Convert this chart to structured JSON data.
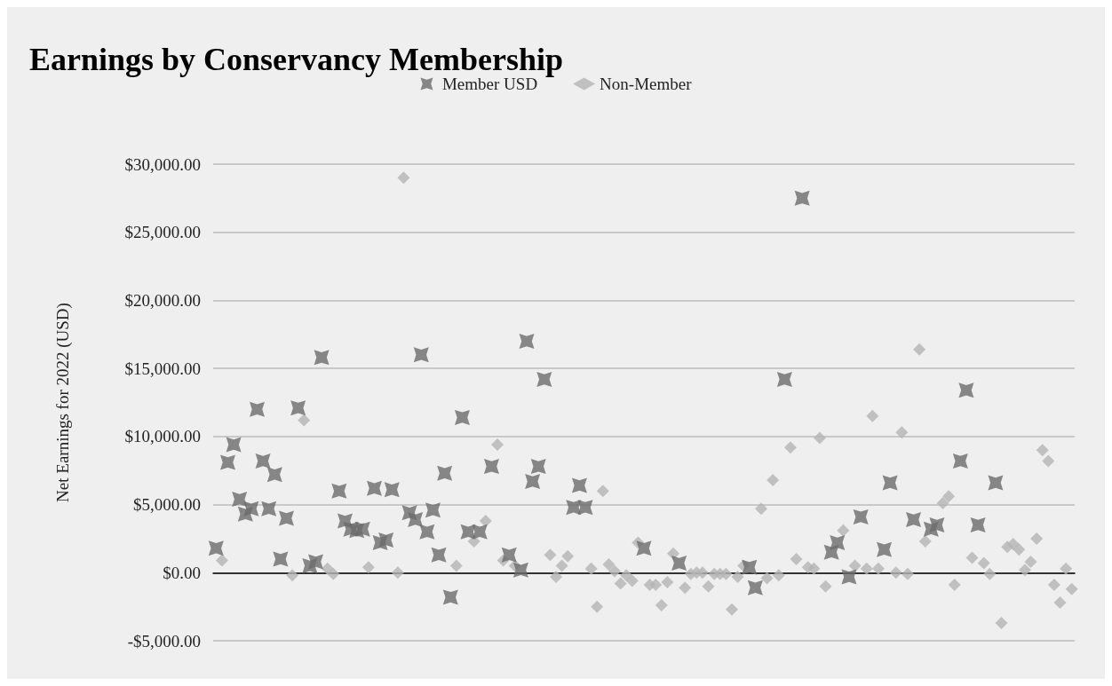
{
  "chart_data": {
    "type": "scatter",
    "title": "Earnings by Conservancy Membership",
    "ylabel": "Net Earnings for 2022 (USD)",
    "categories": [
      null,
      null,
      null,
      null,
      null,
      null,
      null,
      null,
      null,
      null,
      null,
      null,
      null,
      null,
      null,
      null,
      null,
      null,
      null,
      null,
      null,
      null,
      null,
      null,
      null,
      null,
      null,
      null,
      null,
      null,
      null,
      null,
      null,
      null,
      null,
      null,
      null,
      null,
      null,
      null,
      null,
      null,
      null,
      null,
      null,
      null,
      null,
      null,
      null,
      null,
      null,
      null,
      null,
      null,
      null,
      null,
      null,
      null,
      null,
      null,
      null,
      null,
      null,
      null,
      null,
      null,
      null,
      null,
      null,
      null,
      null,
      null,
      null,
      null,
      null,
      null,
      null,
      null,
      null,
      null,
      null,
      null,
      null,
      null,
      null,
      null,
      null,
      null,
      null,
      null,
      null,
      null,
      null,
      null,
      null,
      null,
      null,
      null,
      null,
      null,
      null,
      null,
      null,
      null,
      null,
      null,
      null,
      null,
      null,
      null,
      null,
      null,
      null,
      null,
      null,
      null,
      null,
      null,
      null,
      null,
      null,
      null,
      null,
      null,
      null,
      null,
      null,
      null,
      null,
      null,
      null,
      null,
      null,
      null,
      null,
      null,
      null,
      null,
      null,
      null,
      null,
      null,
      null,
      null,
      null,
      null,
      null
    ],
    "series": [
      {
        "name": "Member USD",
        "color": "#6b6b6b",
        "marker": "cross",
        "values": [
          1800,
          null,
          8100,
          9400,
          5400,
          4300,
          4700,
          12000,
          8200,
          4700,
          7200,
          1000,
          4000,
          null,
          12100,
          null,
          500,
          800,
          15800,
          null,
          null,
          6000,
          3800,
          3200,
          3100,
          3200,
          null,
          6200,
          2200,
          2400,
          6100,
          null,
          null,
          4400,
          3900,
          16000,
          3000,
          4600,
          1300,
          7300,
          -1800,
          null,
          11400,
          3000,
          null,
          3000,
          null,
          7800,
          null,
          null,
          1300,
          null,
          200,
          17000,
          6700,
          7800,
          14200,
          null,
          null,
          null,
          null,
          4800,
          6400,
          4800,
          null,
          null,
          null,
          null,
          null,
          null,
          null,
          null,
          null,
          1800,
          null,
          null,
          null,
          null,
          null,
          700,
          null,
          null,
          null,
          null,
          null,
          null,
          null,
          null,
          null,
          null,
          null,
          400,
          -1100,
          null,
          null,
          null,
          null,
          14200,
          null,
          null,
          27500,
          null,
          null,
          null,
          null,
          1500,
          2200,
          null,
          -300,
          null,
          4100,
          null,
          null,
          null,
          1700,
          6600,
          null,
          null,
          null,
          3900,
          null,
          null,
          3200,
          3500,
          null,
          null,
          null,
          8200,
          13400,
          null,
          3500,
          null,
          null,
          6600,
          null,
          null,
          null,
          null,
          null,
          null,
          null,
          null,
          null,
          null,
          null,
          null,
          null
        ]
      },
      {
        "name": "Non-Member",
        "color": "#b4b4b4",
        "marker": "diamond",
        "values": [
          null,
          900,
          null,
          null,
          null,
          null,
          null,
          null,
          null,
          null,
          null,
          null,
          null,
          -200,
          null,
          11200,
          null,
          null,
          null,
          300,
          -100,
          null,
          null,
          null,
          null,
          null,
          400,
          null,
          null,
          null,
          null,
          0,
          29000,
          null,
          null,
          null,
          null,
          null,
          null,
          null,
          null,
          500,
          null,
          null,
          2300,
          null,
          3800,
          null,
          9400,
          900,
          null,
          500,
          null,
          null,
          null,
          null,
          null,
          1300,
          -300,
          500,
          1200,
          null,
          null,
          null,
          300,
          -2500,
          6000,
          600,
          100,
          -800,
          -200,
          -600,
          2200,
          null,
          -900,
          -900,
          -2400,
          -700,
          1400,
          null,
          -1100,
          -100,
          0,
          0,
          -1000,
          -100,
          -100,
          -100,
          -2700,
          -300,
          500,
          null,
          null,
          4700,
          -400,
          6800,
          -200,
          null,
          9200,
          1000,
          null,
          400,
          300,
          9900,
          -1000,
          null,
          null,
          3100,
          null,
          500,
          null,
          300,
          11500,
          300,
          null,
          null,
          0,
          10300,
          -100,
          null,
          16400,
          2300,
          null,
          null,
          5100,
          5600,
          -900,
          null,
          null,
          1100,
          null,
          700,
          -100,
          null,
          -3700,
          1900,
          2100,
          1700,
          200,
          800,
          2500,
          9000,
          8200,
          -900,
          -2200,
          300,
          -1200
        ]
      }
    ],
    "ylim": [
      -5000,
      30000
    ],
    "yticks": [
      {
        "value": -5000,
        "label": "-$5,000.00"
      },
      {
        "value": 0,
        "label": "$0.00"
      },
      {
        "value": 5000,
        "label": "$5,000.00"
      },
      {
        "value": 10000,
        "label": "$10,000.00"
      },
      {
        "value": 15000,
        "label": "$15,000.00"
      },
      {
        "value": 20000,
        "label": "$20,000.00"
      },
      {
        "value": 25000,
        "label": "$25,000.00"
      },
      {
        "value": 30000,
        "label": "$30,000.00"
      }
    ],
    "grid": "y",
    "legend": "top",
    "tick_labels": "y"
  }
}
